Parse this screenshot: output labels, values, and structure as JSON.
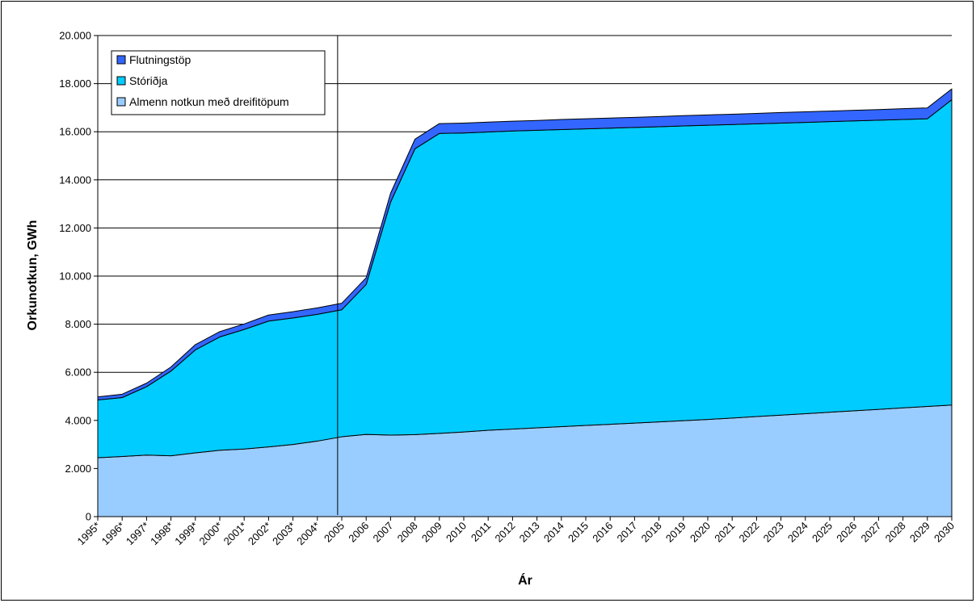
{
  "chart_data": {
    "type": "area",
    "stacked": true,
    "xlabel": "Ár",
    "ylabel": "Orkunotkun, GWh",
    "ylim": [
      0,
      20000
    ],
    "yticks": [
      0,
      2000,
      4000,
      6000,
      8000,
      10000,
      12000,
      14000,
      16000,
      18000,
      20000
    ],
    "ytick_labels": [
      "0",
      "2.000",
      "4.000",
      "6.000",
      "8.000",
      "10.000",
      "12.000",
      "14.000",
      "16.000",
      "18.000",
      "20.000"
    ],
    "grid": true,
    "legend_position": "top-left",
    "divider_after": "2004*",
    "categories": [
      "1995*",
      "1996*",
      "1997*",
      "1998*",
      "1999*",
      "2000*",
      "2001*",
      "2002*",
      "2003*",
      "2004*",
      "2005",
      "2006",
      "2007",
      "2008",
      "2009",
      "2010",
      "2011",
      "2012",
      "2013",
      "2014",
      "2015",
      "2016",
      "2017",
      "2018",
      "2019",
      "2020",
      "2021",
      "2022",
      "2023",
      "2024",
      "2025",
      "2026",
      "2027",
      "2028",
      "2029",
      "2030"
    ],
    "series": [
      {
        "name": "Almenn notkun með dreifitöpum",
        "color": "#99ccff",
        "values": [
          2450,
          2500,
          2560,
          2530,
          2650,
          2760,
          2810,
          2900,
          3000,
          3140,
          3320,
          3420,
          3390,
          3410,
          3460,
          3520,
          3590,
          3640,
          3690,
          3740,
          3790,
          3840,
          3890,
          3940,
          3990,
          4040,
          4100,
          4160,
          4220,
          4280,
          4340,
          4400,
          4460,
          4520,
          4580,
          4640
        ]
      },
      {
        "name": "Stóriðja",
        "color": "#00ccff",
        "values": [
          2400,
          2450,
          2840,
          3520,
          4280,
          4710,
          4970,
          5230,
          5260,
          5270,
          5280,
          6230,
          9680,
          11880,
          12470,
          12430,
          12400,
          12390,
          12370,
          12350,
          12330,
          12310,
          12290,
          12270,
          12250,
          12230,
          12200,
          12170,
          12140,
          12110,
          12080,
          12050,
          12020,
          11990,
          11960,
          12690
        ]
      },
      {
        "name": "Flutningstöp",
        "color": "#3366ff",
        "values": [
          130,
          140,
          150,
          170,
          220,
          220,
          230,
          250,
          260,
          270,
          270,
          280,
          370,
          400,
          410,
          410,
          410,
          410,
          410,
          420,
          420,
          420,
          420,
          420,
          430,
          430,
          430,
          430,
          440,
          440,
          440,
          440,
          440,
          450,
          450,
          450
        ]
      }
    ]
  }
}
